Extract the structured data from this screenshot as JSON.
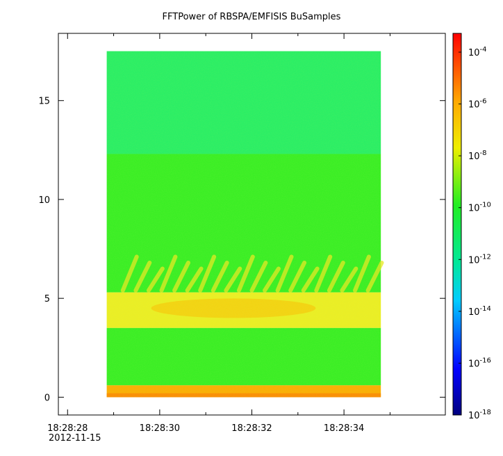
{
  "chart_data": {
    "type": "heatmap",
    "title": "FFTPower of RBSPA/EMFISIS  BuSamples",
    "x_axis": {
      "ticks": [
        {
          "value": 0,
          "label": "18:28:28"
        },
        {
          "value": 2,
          "label": "18:28:30"
        },
        {
          "value": 4,
          "label": "18:28:32"
        },
        {
          "value": 6,
          "label": "18:28:34"
        }
      ],
      "minor_ticks": [
        1,
        3,
        5,
        7
      ],
      "range": [
        -0.2,
        8.2
      ],
      "date_label": "2012-11-15"
    },
    "y_axis": {
      "ticks": [
        0,
        5,
        10,
        15
      ],
      "range": [
        -0.9,
        18.4
      ]
    },
    "data_extent": {
      "x": [
        0.85,
        6.8
      ],
      "y": [
        0,
        17.5
      ]
    },
    "colorbar": {
      "scale": "log",
      "range": [
        "1e-18",
        "1e-4"
      ],
      "tick_labels": [
        {
          "base": "10",
          "exp": "-4"
        },
        {
          "base": "10",
          "exp": "-6"
        },
        {
          "base": "10",
          "exp": "-8"
        },
        {
          "base": "10",
          "exp": "-10"
        },
        {
          "base": "10",
          "exp": "-12"
        },
        {
          "base": "10",
          "exp": "-14"
        },
        {
          "base": "10",
          "exp": "-16"
        },
        {
          "base": "10",
          "exp": "-18"
        }
      ]
    },
    "bands": [
      {
        "y": [
          12.3,
          17.5
        ],
        "level": "1e-12"
      },
      {
        "y": [
          5.3,
          12.3
        ],
        "level": "1e-10"
      },
      {
        "y": [
          3.5,
          5.3
        ],
        "level": "1e-8"
      },
      {
        "y": [
          0.6,
          3.5
        ],
        "level": "1e-10"
      },
      {
        "y": [
          0,
          0.6
        ],
        "level": "1e-7"
      }
    ],
    "colors": {
      "band_high_freq": "#22ee66",
      "band_mid": "#33ee22",
      "band_chorus": "#eeee22",
      "band_low": "#ffaa00",
      "frame": "#000000"
    }
  }
}
